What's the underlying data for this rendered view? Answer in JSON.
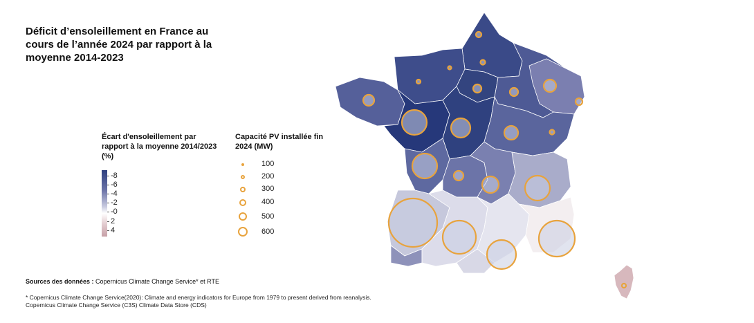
{
  "title": "Déficit d’ensoleillement en France au cours de l’année 2024 par rapport à la moyenne 2014-2023",
  "color_legend": {
    "title": "Écart d'ensoleillement par rapport à la moyenne 2014/2023 (%)",
    "ticks": [
      "-8",
      "-6",
      "-4",
      "-2",
      "-0",
      "2",
      "4"
    ]
  },
  "size_legend": {
    "title": "Capacité PV installée fin 2024 (MW)",
    "values": [
      "100",
      "200",
      "300",
      "400",
      "500",
      "600"
    ]
  },
  "sources": {
    "label": "Sources des données :",
    "text": "Copernicus Climate Change Service* et RTE"
  },
  "footnote": "* Copernicus Climate Change Service(2020): Climate and energy indicators for Europe from 1979 to present derived from reanalysis.\n  Copernicus Climate Change Service (C3S) Climate Data Store (CDS)",
  "colors": {
    "bubble_stroke": "#e8a33d",
    "darkest": "#2e3f7f",
    "mid": "#6b73a7",
    "light": "#c9cbe0",
    "positive": "#c7a0a7"
  }
}
